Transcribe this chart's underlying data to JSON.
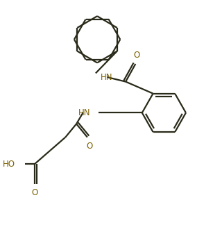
{
  "background_color": "#ffffff",
  "line_color": "#2a2a1a",
  "atom_color": "#7a6000",
  "bond_width": 1.6,
  "figsize": [
    3.2,
    3.24
  ],
  "dpi": 100,
  "xlim": [
    0,
    10
  ],
  "ylim": [
    0,
    10.125
  ]
}
